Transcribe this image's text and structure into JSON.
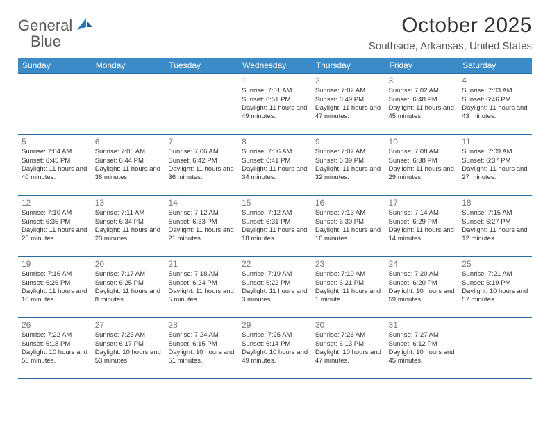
{
  "logo": {
    "word1": "General",
    "word2": "Blue"
  },
  "title": "October 2025",
  "location": "Southside, Arkansas, United States",
  "colors": {
    "header_bg": "#3b8bc8",
    "header_text": "#ffffff",
    "rule": "#2a6aa0",
    "daynum": "#777777",
    "body_text": "#333333",
    "logo_gray": "#5a5a5a",
    "logo_blue": "#2a7ab9"
  },
  "day_headers": [
    "Sunday",
    "Monday",
    "Tuesday",
    "Wednesday",
    "Thursday",
    "Friday",
    "Saturday"
  ],
  "weeks": [
    [
      null,
      null,
      null,
      {
        "n": "1",
        "sr": "7:01 AM",
        "ss": "6:51 PM",
        "dl": "11 hours and 49 minutes."
      },
      {
        "n": "2",
        "sr": "7:02 AM",
        "ss": "6:49 PM",
        "dl": "11 hours and 47 minutes."
      },
      {
        "n": "3",
        "sr": "7:02 AM",
        "ss": "6:48 PM",
        "dl": "11 hours and 45 minutes."
      },
      {
        "n": "4",
        "sr": "7:03 AM",
        "ss": "6:46 PM",
        "dl": "11 hours and 43 minutes."
      }
    ],
    [
      {
        "n": "5",
        "sr": "7:04 AM",
        "ss": "6:45 PM",
        "dl": "11 hours and 40 minutes."
      },
      {
        "n": "6",
        "sr": "7:05 AM",
        "ss": "6:44 PM",
        "dl": "11 hours and 38 minutes."
      },
      {
        "n": "7",
        "sr": "7:06 AM",
        "ss": "6:42 PM",
        "dl": "11 hours and 36 minutes."
      },
      {
        "n": "8",
        "sr": "7:06 AM",
        "ss": "6:41 PM",
        "dl": "11 hours and 34 minutes."
      },
      {
        "n": "9",
        "sr": "7:07 AM",
        "ss": "6:39 PM",
        "dl": "11 hours and 32 minutes."
      },
      {
        "n": "10",
        "sr": "7:08 AM",
        "ss": "6:38 PM",
        "dl": "11 hours and 29 minutes."
      },
      {
        "n": "11",
        "sr": "7:09 AM",
        "ss": "6:37 PM",
        "dl": "11 hours and 27 minutes."
      }
    ],
    [
      {
        "n": "12",
        "sr": "7:10 AM",
        "ss": "6:35 PM",
        "dl": "11 hours and 25 minutes."
      },
      {
        "n": "13",
        "sr": "7:11 AM",
        "ss": "6:34 PM",
        "dl": "11 hours and 23 minutes."
      },
      {
        "n": "14",
        "sr": "7:12 AM",
        "ss": "6:33 PM",
        "dl": "11 hours and 21 minutes."
      },
      {
        "n": "15",
        "sr": "7:12 AM",
        "ss": "6:31 PM",
        "dl": "11 hours and 18 minutes."
      },
      {
        "n": "16",
        "sr": "7:13 AM",
        "ss": "6:30 PM",
        "dl": "11 hours and 16 minutes."
      },
      {
        "n": "17",
        "sr": "7:14 AM",
        "ss": "6:29 PM",
        "dl": "11 hours and 14 minutes."
      },
      {
        "n": "18",
        "sr": "7:15 AM",
        "ss": "6:27 PM",
        "dl": "11 hours and 12 minutes."
      }
    ],
    [
      {
        "n": "19",
        "sr": "7:16 AM",
        "ss": "6:26 PM",
        "dl": "11 hours and 10 minutes."
      },
      {
        "n": "20",
        "sr": "7:17 AM",
        "ss": "6:25 PM",
        "dl": "11 hours and 8 minutes."
      },
      {
        "n": "21",
        "sr": "7:18 AM",
        "ss": "6:24 PM",
        "dl": "11 hours and 5 minutes."
      },
      {
        "n": "22",
        "sr": "7:19 AM",
        "ss": "6:22 PM",
        "dl": "11 hours and 3 minutes."
      },
      {
        "n": "23",
        "sr": "7:19 AM",
        "ss": "6:21 PM",
        "dl": "11 hours and 1 minute."
      },
      {
        "n": "24",
        "sr": "7:20 AM",
        "ss": "6:20 PM",
        "dl": "10 hours and 59 minutes."
      },
      {
        "n": "25",
        "sr": "7:21 AM",
        "ss": "6:19 PM",
        "dl": "10 hours and 57 minutes."
      }
    ],
    [
      {
        "n": "26",
        "sr": "7:22 AM",
        "ss": "6:18 PM",
        "dl": "10 hours and 55 minutes."
      },
      {
        "n": "27",
        "sr": "7:23 AM",
        "ss": "6:17 PM",
        "dl": "10 hours and 53 minutes."
      },
      {
        "n": "28",
        "sr": "7:24 AM",
        "ss": "6:15 PM",
        "dl": "10 hours and 51 minutes."
      },
      {
        "n": "29",
        "sr": "7:25 AM",
        "ss": "6:14 PM",
        "dl": "10 hours and 49 minutes."
      },
      {
        "n": "30",
        "sr": "7:26 AM",
        "ss": "6:13 PM",
        "dl": "10 hours and 47 minutes."
      },
      {
        "n": "31",
        "sr": "7:27 AM",
        "ss": "6:12 PM",
        "dl": "10 hours and 45 minutes."
      },
      null
    ]
  ],
  "labels": {
    "sunrise": "Sunrise:",
    "sunset": "Sunset:",
    "daylight": "Daylight:"
  }
}
